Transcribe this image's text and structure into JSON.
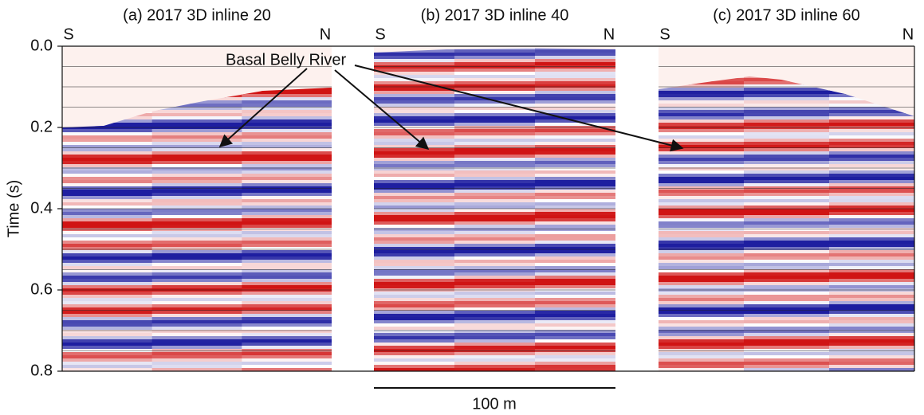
{
  "figure": {
    "y_axis": {
      "label": "Time (s)",
      "ticks": [
        "0.0",
        "0.2",
        "0.4",
        "0.6",
        "0.8"
      ]
    },
    "panels": [
      {
        "title": "(a) 2017 3D inline 20",
        "left": "S",
        "right": "N"
      },
      {
        "title": "(b) 2017 3D inline 40",
        "left": "S",
        "right": "N"
      },
      {
        "title": "(c) 2017 3D inline 60",
        "left": "S",
        "right": "N"
      }
    ],
    "annotation": "Basal Belly River",
    "scale_bar": "100 m"
  }
}
